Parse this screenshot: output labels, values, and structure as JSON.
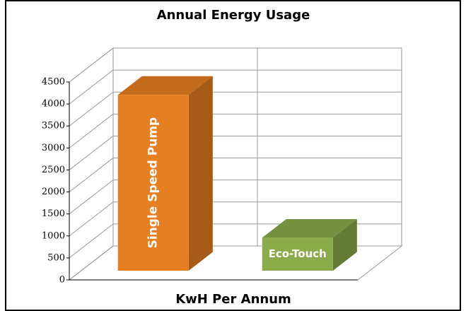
{
  "chart_data": {
    "type": "bar3d",
    "title": "Annual Energy Usage",
    "x_label": "KwH Per Annum",
    "categories": [
      "Single Speed Pump",
      "Eco-Touch"
    ],
    "values": [
      4000,
      750
    ],
    "colors": [
      "#e67e22",
      "#8aab4a"
    ],
    "ylim": [
      0,
      4500
    ],
    "yticks": [
      0,
      500,
      1000,
      1500,
      2000,
      2500,
      3000,
      3500,
      4000,
      4500
    ],
    "grid": true
  }
}
